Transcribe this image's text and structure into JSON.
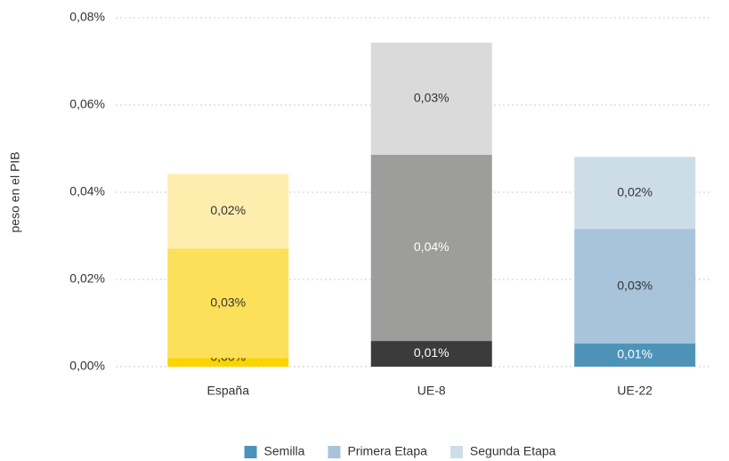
{
  "chart_data": {
    "type": "stacked-bar",
    "y_label": "peso en el PIB",
    "categories": [
      "España",
      "UE-8",
      "UE-22"
    ],
    "series": [
      {
        "name": "Semilla",
        "color": "#4d93b8",
        "colors": [
          "#fcd500",
          "#3b3b3b",
          "#4d93b8"
        ],
        "values": [
          0.002,
          0.0059,
          0.0053
        ],
        "value_labels": [
          "0,00%",
          "0,01%",
          "0,01%"
        ]
      },
      {
        "name": "Primera Etapa",
        "color": "#a7c4db",
        "colors": [
          "#fde05a",
          "#9d9d9b",
          "#a7c4db"
        ],
        "values": [
          0.0251,
          0.0427,
          0.0263
        ],
        "value_labels": [
          "0,03%",
          "0,04%",
          "0,03%"
        ]
      },
      {
        "name": "Segunda Etapa",
        "color": "#cddde8",
        "colors": [
          "#fdeeae",
          "#dadada",
          "#cddde8"
        ],
        "values": [
          0.0171,
          0.0257,
          0.0165
        ],
        "value_labels": [
          "0,02%",
          "0,03%",
          "0,02%"
        ]
      }
    ],
    "ylim": [
      0,
      0.08
    ],
    "yticks": [
      {
        "value": 0,
        "label": "0,00%"
      },
      {
        "value": 0.02,
        "label": "0,02%"
      },
      {
        "value": 0.04,
        "label": "0,04%"
      },
      {
        "value": 0.06,
        "label": "0,06%"
      },
      {
        "value": 0.08,
        "label": "0,08%"
      }
    ],
    "grid": true,
    "legend": "bottom"
  }
}
